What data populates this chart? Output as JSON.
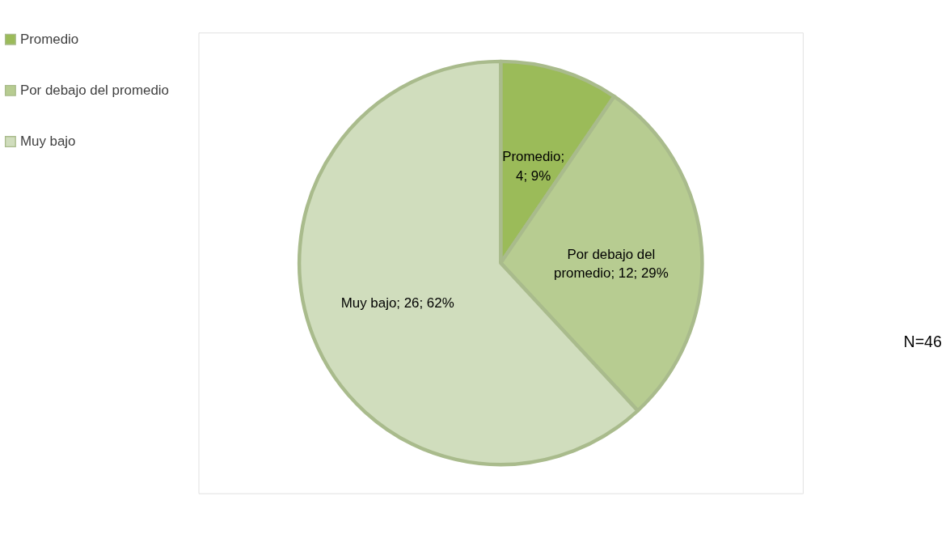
{
  "chart_data": {
    "type": "pie",
    "categories": [
      "Promedio",
      "Por debajo del promedio",
      "Muy bajo"
    ],
    "values": [
      4,
      12,
      26
    ],
    "colors": [
      "#9bbb59",
      "#b7cc91",
      "#d0ddbd"
    ],
    "value_labels": [
      "Promedio;\n4; 9%",
      "Por debajo del\npromedio; 12; 29%",
      "Muy bajo; 26; 62%"
    ],
    "annotations": [
      "N=46"
    ],
    "legend": "left"
  }
}
